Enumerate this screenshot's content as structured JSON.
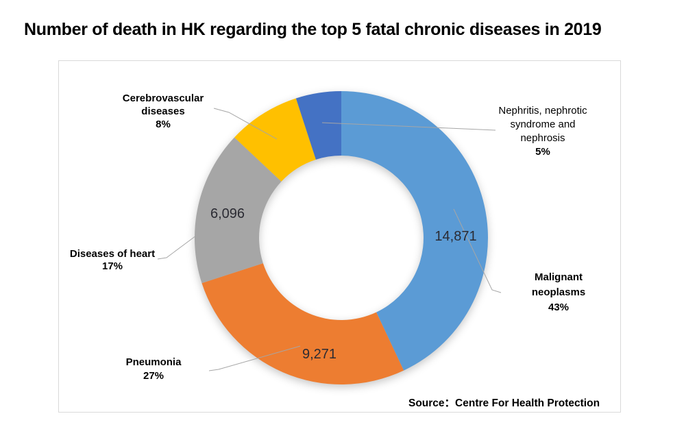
{
  "title": "Number of death in HK regarding the top 5 fatal chronic diseases in 2019",
  "source": "Source：Centre For Health Protection",
  "colors": {
    "malignant_blue": "#5B9BD5",
    "pneumonia_orange": "#ED7D31",
    "heart_gray": "#A6A6A6",
    "cerebrovascular_yellow": "#FFC000",
    "nephritis_dark_blue": "#4472C4",
    "plot_border": "#D9D9D9",
    "leader_line": "#A6A6A6",
    "data_label_text": "#2B2B33"
  },
  "chart_data": {
    "type": "pie",
    "subtype": "donut",
    "title": "Number of death in HK regarding the top 5 fatal chronic diseases in 2019",
    "start_angle_deg": 0,
    "direction": "clockwise",
    "legend": "none",
    "slices": [
      {
        "name": "Malignant neoplasms",
        "pct": 43,
        "value": 14871,
        "value_label": "14,871",
        "color": "#5B9BD5",
        "label_lines": [
          "Malignant",
          "neoplasms",
          "43%"
        ]
      },
      {
        "name": "Pneumonia",
        "pct": 27,
        "value": 9271,
        "value_label": "9,271",
        "color": "#ED7D31",
        "label_lines": [
          "Pneumonia",
          "27%"
        ]
      },
      {
        "name": "Diseases of heart",
        "pct": 17,
        "value": 6096,
        "value_label": "6,096",
        "color": "#A6A6A6",
        "label_lines": [
          "Diseases of heart",
          "17%"
        ]
      },
      {
        "name": "Cerebrovascular diseases",
        "pct": 8,
        "color": "#FFC000",
        "label_lines": [
          "Cerebrovascular",
          "diseases",
          "8%"
        ]
      },
      {
        "name": "Nephritis, nephrotic syndrome and nephrosis",
        "pct": 5,
        "color": "#4472C4",
        "label_lines": [
          "Nephritis, nephrotic",
          "syndrome and",
          "nephrosis",
          "5%"
        ]
      }
    ]
  }
}
